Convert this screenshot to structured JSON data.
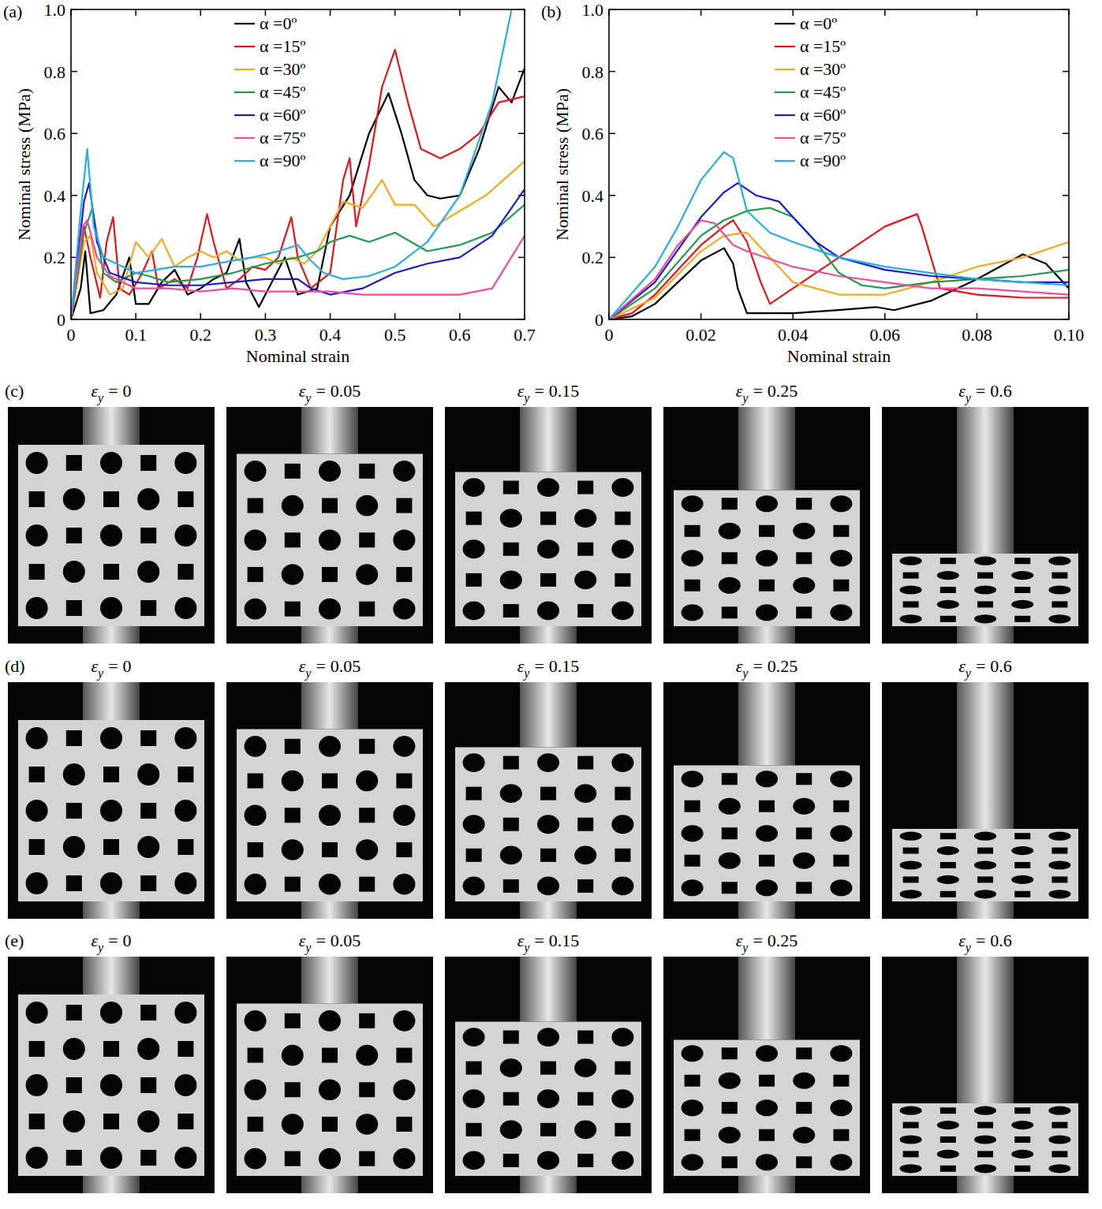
{
  "chart_data": [
    {
      "type": "line",
      "panel": "(a)",
      "xlabel": "Nominal strain",
      "ylabel": "Nominal stress (MPa)",
      "xlim": [
        0,
        0.7
      ],
      "ylim": [
        0,
        1
      ],
      "xticks": [
        0,
        0.1,
        0.2,
        0.3,
        0.4,
        0.5,
        0.6,
        0.7
      ],
      "yticks": [
        0,
        0.2,
        0.4,
        0.6,
        0.8,
        {
          "value": 1,
          "label": "1.0"
        }
      ],
      "legend": "top",
      "series": [
        {
          "name": "α =0º",
          "color": "#000000",
          "x": [
            0,
            0.015,
            0.022,
            0.03,
            0.05,
            0.07,
            0.09,
            0.1,
            0.12,
            0.14,
            0.16,
            0.18,
            0.2,
            0.22,
            0.24,
            0.26,
            0.27,
            0.29,
            0.31,
            0.33,
            0.35,
            0.38,
            0.4,
            0.43,
            0.46,
            0.49,
            0.51,
            0.53,
            0.55,
            0.57,
            0.6,
            0.63,
            0.66,
            0.68,
            0.7
          ],
          "values": [
            0,
            0.1,
            0.22,
            0.02,
            0.03,
            0.08,
            0.2,
            0.05,
            0.05,
            0.12,
            0.16,
            0.08,
            0.1,
            0.13,
            0.15,
            0.26,
            0.12,
            0.04,
            0.12,
            0.2,
            0.08,
            0.1,
            0.3,
            0.4,
            0.6,
            0.73,
            0.6,
            0.45,
            0.4,
            0.39,
            0.4,
            0.55,
            0.75,
            0.7,
            0.81
          ]
        },
        {
          "name": "α =15º",
          "color": "#e8141b",
          "x": [
            0,
            0.02,
            0.03,
            0.045,
            0.055,
            0.065,
            0.075,
            0.09,
            0.11,
            0.125,
            0.135,
            0.16,
            0.18,
            0.195,
            0.21,
            0.22,
            0.24,
            0.26,
            0.28,
            0.3,
            0.32,
            0.34,
            0.35,
            0.37,
            0.4,
            0.42,
            0.43,
            0.44,
            0.46,
            0.48,
            0.5,
            0.52,
            0.54,
            0.57,
            0.6,
            0.63,
            0.66,
            0.7
          ],
          "values": [
            0,
            0.3,
            0.2,
            0.07,
            0.25,
            0.33,
            0.1,
            0.08,
            0.15,
            0.22,
            0.1,
            0.13,
            0.1,
            0.2,
            0.34,
            0.25,
            0.1,
            0.13,
            0.17,
            0.16,
            0.2,
            0.33,
            0.2,
            0.1,
            0.15,
            0.45,
            0.52,
            0.3,
            0.5,
            0.75,
            0.87,
            0.7,
            0.55,
            0.52,
            0.55,
            0.6,
            0.7,
            0.72
          ]
        },
        {
          "name": "α =30º",
          "color": "#f7a81b",
          "x": [
            0,
            0.02,
            0.03,
            0.04,
            0.06,
            0.08,
            0.1,
            0.12,
            0.14,
            0.16,
            0.18,
            0.2,
            0.22,
            0.24,
            0.26,
            0.28,
            0.3,
            0.32,
            0.34,
            0.36,
            0.38,
            0.4,
            0.42,
            0.45,
            0.48,
            0.5,
            0.53,
            0.56,
            0.6,
            0.64,
            0.7
          ],
          "values": [
            0,
            0.25,
            0.27,
            0.15,
            0.08,
            0.1,
            0.25,
            0.2,
            0.26,
            0.17,
            0.2,
            0.22,
            0.2,
            0.22,
            0.19,
            0.2,
            0.2,
            0.18,
            0.2,
            0.18,
            0.22,
            0.3,
            0.38,
            0.36,
            0.45,
            0.37,
            0.37,
            0.3,
            0.35,
            0.4,
            0.51
          ]
        },
        {
          "name": "α =45º",
          "color": "#1f9a48",
          "x": [
            0,
            0.02,
            0.033,
            0.05,
            0.07,
            0.1,
            0.12,
            0.15,
            0.2,
            0.25,
            0.3,
            0.35,
            0.38,
            0.4,
            0.43,
            0.46,
            0.5,
            0.55,
            0.6,
            0.65,
            0.7
          ],
          "values": [
            0,
            0.28,
            0.36,
            0.15,
            0.12,
            0.15,
            0.14,
            0.12,
            0.13,
            0.15,
            0.18,
            0.2,
            0.22,
            0.25,
            0.27,
            0.25,
            0.28,
            0.22,
            0.24,
            0.28,
            0.37
          ]
        },
        {
          "name": "α =60º",
          "color": "#1a1ad8",
          "x": [
            0,
            0.02,
            0.028,
            0.04,
            0.06,
            0.1,
            0.15,
            0.2,
            0.25,
            0.3,
            0.35,
            0.37,
            0.4,
            0.45,
            0.5,
            0.55,
            0.6,
            0.65,
            0.7
          ],
          "values": [
            0,
            0.38,
            0.44,
            0.25,
            0.15,
            0.12,
            0.11,
            0.11,
            0.12,
            0.13,
            0.13,
            0.1,
            0.08,
            0.1,
            0.15,
            0.18,
            0.2,
            0.27,
            0.42
          ]
        },
        {
          "name": "α =75º",
          "color": "#ee4d9b",
          "x": [
            0,
            0.018,
            0.025,
            0.04,
            0.06,
            0.1,
            0.15,
            0.2,
            0.25,
            0.3,
            0.35,
            0.4,
            0.45,
            0.5,
            0.55,
            0.6,
            0.65,
            0.7
          ],
          "values": [
            0,
            0.3,
            0.32,
            0.2,
            0.14,
            0.1,
            0.1,
            0.09,
            0.1,
            0.09,
            0.09,
            0.09,
            0.08,
            0.08,
            0.08,
            0.08,
            0.1,
            0.27
          ]
        },
        {
          "name": "α =90º",
          "color": "#27aee8",
          "x": [
            0,
            0.015,
            0.025,
            0.035,
            0.05,
            0.08,
            0.1,
            0.13,
            0.16,
            0.2,
            0.25,
            0.28,
            0.32,
            0.35,
            0.37,
            0.39,
            0.42,
            0.46,
            0.5,
            0.55,
            0.6,
            0.65,
            0.68
          ],
          "values": [
            0,
            0.35,
            0.55,
            0.3,
            0.2,
            0.17,
            0.15,
            0.16,
            0.17,
            0.17,
            0.19,
            0.2,
            0.22,
            0.24,
            0.19,
            0.15,
            0.13,
            0.14,
            0.17,
            0.25,
            0.4,
            0.7,
            1.0
          ]
        }
      ]
    },
    {
      "type": "line",
      "panel": "(b)",
      "xlabel": "Nominal strain",
      "ylabel": "Nominal stress (MPa)",
      "xlim": [
        0,
        0.1
      ],
      "ylim": [
        0,
        1
      ],
      "xticks": [
        0,
        0.02,
        0.04,
        0.06,
        0.08,
        {
          "value": 0.1,
          "label": "0.10"
        }
      ],
      "yticks": [
        0,
        0.2,
        0.4,
        0.6,
        0.8,
        {
          "value": 1,
          "label": "1.0"
        }
      ],
      "legend": "top",
      "series": [
        {
          "name": "α =0º",
          "color": "#000000",
          "x": [
            0,
            0.005,
            0.01,
            0.015,
            0.02,
            0.025,
            0.027,
            0.028,
            0.03,
            0.04,
            0.05,
            0.058,
            0.062,
            0.07,
            0.08,
            0.09,
            0.095,
            0.1
          ],
          "values": [
            0,
            0.01,
            0.05,
            0.12,
            0.19,
            0.23,
            0.18,
            0.1,
            0.02,
            0.02,
            0.03,
            0.04,
            0.03,
            0.06,
            0.13,
            0.21,
            0.18,
            0.1
          ]
        },
        {
          "name": "α =15º",
          "color": "#e8141b",
          "x": [
            0,
            0.005,
            0.01,
            0.015,
            0.02,
            0.025,
            0.027,
            0.03,
            0.033,
            0.035,
            0.04,
            0.05,
            0.06,
            0.067,
            0.068,
            0.07,
            0.072,
            0.08,
            0.09,
            0.1
          ],
          "values": [
            0,
            0.02,
            0.08,
            0.16,
            0.24,
            0.3,
            0.32,
            0.25,
            0.12,
            0.05,
            0.1,
            0.2,
            0.3,
            0.34,
            0.3,
            0.2,
            0.1,
            0.08,
            0.07,
            0.07
          ]
        },
        {
          "name": "α =30º",
          "color": "#f7a81b",
          "x": [
            0,
            0.01,
            0.02,
            0.025,
            0.03,
            0.035,
            0.04,
            0.05,
            0.06,
            0.07,
            0.08,
            0.09,
            0.1
          ],
          "values": [
            0,
            0.07,
            0.22,
            0.27,
            0.28,
            0.2,
            0.12,
            0.08,
            0.08,
            0.12,
            0.17,
            0.2,
            0.25
          ]
        },
        {
          "name": "α =45º",
          "color": "#1f9a48",
          "x": [
            0,
            0.01,
            0.02,
            0.025,
            0.03,
            0.035,
            0.04,
            0.045,
            0.05,
            0.055,
            0.06,
            0.07,
            0.08,
            0.09,
            0.1
          ],
          "values": [
            0,
            0.1,
            0.27,
            0.32,
            0.35,
            0.36,
            0.33,
            0.25,
            0.15,
            0.11,
            0.1,
            0.12,
            0.13,
            0.14,
            0.16
          ]
        },
        {
          "name": "α =60º",
          "color": "#1a1ad8",
          "x": [
            0,
            0.01,
            0.02,
            0.025,
            0.028,
            0.032,
            0.037,
            0.04,
            0.045,
            0.05,
            0.06,
            0.07,
            0.08,
            0.09,
            0.1
          ],
          "values": [
            0,
            0.12,
            0.33,
            0.41,
            0.44,
            0.4,
            0.38,
            0.33,
            0.25,
            0.2,
            0.16,
            0.14,
            0.13,
            0.12,
            0.12
          ]
        },
        {
          "name": "α =75º",
          "color": "#ee4d9b",
          "x": [
            0,
            0.01,
            0.015,
            0.02,
            0.023,
            0.027,
            0.03,
            0.04,
            0.05,
            0.06,
            0.07,
            0.08,
            0.09,
            0.1
          ],
          "values": [
            0,
            0.13,
            0.24,
            0.32,
            0.31,
            0.24,
            0.22,
            0.17,
            0.14,
            0.12,
            0.1,
            0.1,
            0.09,
            0.08
          ]
        },
        {
          "name": "α =90º",
          "color": "#27aee8",
          "x": [
            0,
            0.01,
            0.015,
            0.02,
            0.025,
            0.027,
            0.03,
            0.035,
            0.04,
            0.05,
            0.06,
            0.07,
            0.08,
            0.09,
            0.1
          ],
          "values": [
            0,
            0.17,
            0.3,
            0.45,
            0.54,
            0.52,
            0.35,
            0.28,
            0.25,
            0.2,
            0.17,
            0.15,
            0.13,
            0.12,
            0.11
          ]
        }
      ]
    }
  ],
  "photo_panels": [
    {
      "letter": "(c)",
      "frames": [
        {
          "symbol": "ε",
          "sub": "y",
          "relation": "=",
          "value": 0
        },
        {
          "symbol": "ε",
          "sub": "y",
          "relation": "=",
          "value": 0.05
        },
        {
          "symbol": "ε",
          "sub": "y",
          "relation": "=",
          "value": 0.15
        },
        {
          "symbol": "ε",
          "sub": "y",
          "relation": "=",
          "value": 0.25
        },
        {
          "symbol": "ε",
          "sub": "y",
          "relation": "=",
          "value": 0.6
        }
      ]
    },
    {
      "letter": "(d)",
      "frames": [
        {
          "symbol": "ε",
          "sub": "y",
          "relation": "=",
          "value": 0
        },
        {
          "symbol": "ε",
          "sub": "y",
          "relation": "=",
          "value": 0.05
        },
        {
          "symbol": "ε",
          "sub": "y",
          "relation": "=",
          "value": 0.15
        },
        {
          "symbol": "ε",
          "sub": "y",
          "relation": "=",
          "value": 0.25
        },
        {
          "symbol": "ε",
          "sub": "y",
          "relation": "=",
          "value": 0.6
        }
      ]
    },
    {
      "letter": "(e)",
      "frames": [
        {
          "symbol": "ε",
          "sub": "y",
          "relation": "=",
          "value": 0
        },
        {
          "symbol": "ε",
          "sub": "y",
          "relation": "=",
          "value": 0.05
        },
        {
          "symbol": "ε",
          "sub": "y",
          "relation": "=",
          "value": 0.15
        },
        {
          "symbol": "ε",
          "sub": "y",
          "relation": "=",
          "value": 0.25
        },
        {
          "symbol": "ε",
          "sub": "y",
          "relation": "=",
          "value": 0.6
        }
      ]
    }
  ]
}
